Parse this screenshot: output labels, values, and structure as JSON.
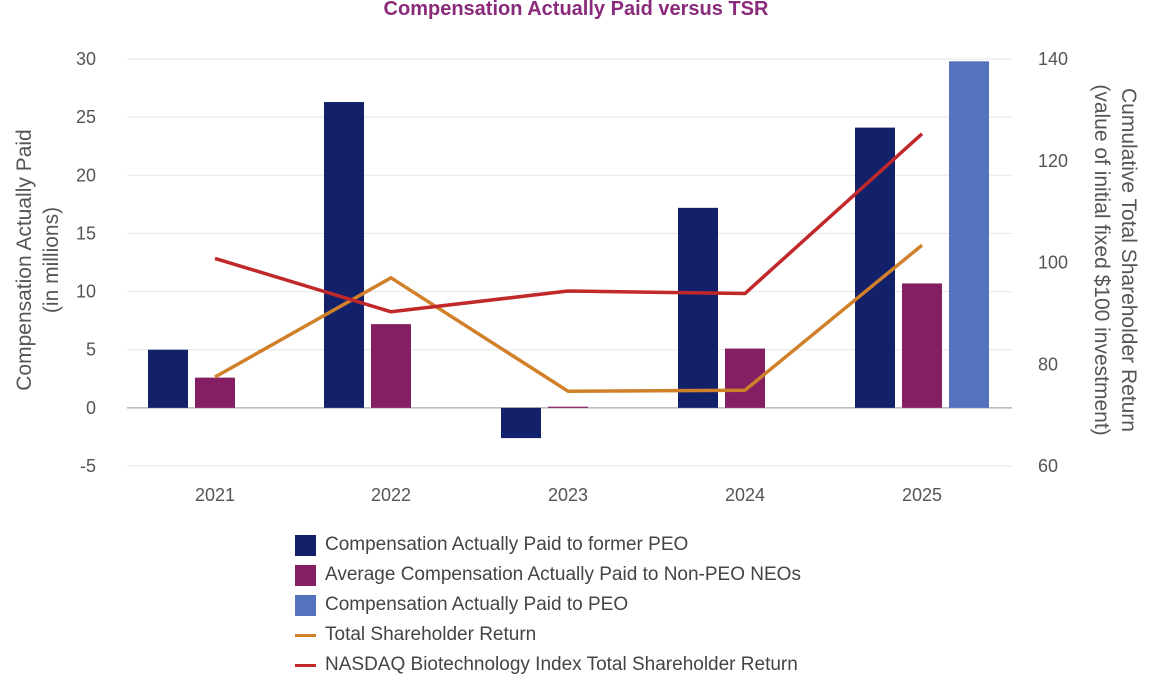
{
  "chart_data": {
    "type": "bar",
    "title": "Compensation Actually Paid versus TSR",
    "categories": [
      "2021",
      "2022",
      "2023",
      "2024",
      "2025"
    ],
    "ylabel": [
      "Compensation Actually Paid",
      "(in millions)"
    ],
    "y2label": [
      "Cumulative Total Shareholder Return",
      "(value of initial fixed $100 investment)"
    ],
    "ylim": [
      -5,
      30
    ],
    "yticks": [
      "30",
      "25",
      "20",
      "15",
      "10",
      "5",
      "0",
      "-5"
    ],
    "y2lim": [
      60,
      140
    ],
    "y2ticks": [
      "140",
      "120",
      "100",
      "80",
      "60"
    ],
    "series": [
      {
        "name": "Compensation Actually Paid to former PEO",
        "type": "bar",
        "axis": "left",
        "color": "#12216a",
        "values": [
          5.0,
          26.3,
          -2.6,
          17.2,
          24.1
        ]
      },
      {
        "name": "Average Compensation Actually Paid to Non-PEO NEOs",
        "type": "bar",
        "axis": "left",
        "color": "#841f64",
        "values": [
          2.6,
          7.2,
          0.1,
          5.1,
          10.7
        ]
      },
      {
        "name": "Compensation Actually Paid to PEO",
        "type": "bar",
        "axis": "left",
        "color": "#5472bd",
        "values": [
          null,
          null,
          null,
          null,
          29.8
        ]
      },
      {
        "name": "Total Shareholder Return",
        "type": "line",
        "axis": "right",
        "color": "#d1802a",
        "values": [
          77.5,
          97.0,
          74.7,
          74.9,
          103.4
        ]
      },
      {
        "name": "NASDAQ Biotechnology Index Total Shareholder Return",
        "type": "line",
        "axis": "right",
        "color": "#c0282a",
        "values": [
          100.8,
          90.3,
          94.4,
          93.9,
          125.3
        ]
      }
    ],
    "grid": true,
    "legend_position": "bottom"
  }
}
